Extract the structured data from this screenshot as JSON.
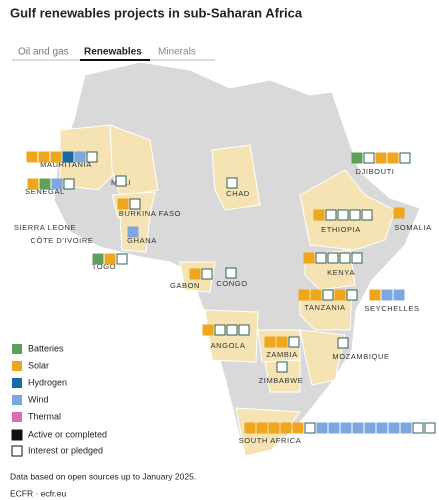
{
  "header": {
    "title": "Gulf renewables projects in sub-Saharan Africa"
  },
  "tabs": [
    "Oil and gas",
    "Renewables",
    "Minerals"
  ],
  "legend": {
    "types": [
      {
        "label": "Batteries",
        "color": "#5f9f5c"
      },
      {
        "label": "Solar",
        "color": "#efa51c"
      },
      {
        "label": "Hydrogen",
        "color": "#1b68a6"
      },
      {
        "label": "Wind",
        "color": "#7ea7e0"
      },
      {
        "label": "Thermal",
        "color": "#d86db6"
      }
    ],
    "statuses": [
      "Active or completed",
      "Interest or pledged"
    ]
  },
  "countries": [
    {
      "name": "MAURITANIA",
      "projects": [
        {
          "type": "Solar",
          "status": "Active or completed"
        },
        {
          "type": "Solar",
          "status": "Active or completed"
        },
        {
          "type": "Solar",
          "status": "Active or completed"
        },
        {
          "type": "Hydrogen",
          "status": "Active or completed"
        },
        {
          "type": "Wind",
          "status": "Active or completed"
        },
        {
          "type": "Hydrogen",
          "status": "Interest or pledged"
        }
      ]
    },
    {
      "name": "SENEGAL",
      "projects": [
        {
          "type": "Solar",
          "status": "Active or completed"
        },
        {
          "type": "Batteries",
          "status": "Active or completed"
        },
        {
          "type": "Wind",
          "status": "Active or completed"
        },
        {
          "type": "Solar",
          "status": "Interest or pledged"
        }
      ]
    },
    {
      "name": "MALI",
      "projects": [
        {
          "type": "Solar",
          "status": "Interest or pledged"
        }
      ]
    },
    {
      "name": "CHAD",
      "projects": [
        {
          "type": "Solar",
          "status": "Interest or pledged"
        }
      ]
    },
    {
      "name": "BURKINA FASO",
      "projects": [
        {
          "type": "Solar",
          "status": "Active or completed"
        },
        {
          "type": "Solar",
          "status": "Interest or pledged"
        }
      ]
    },
    {
      "name": "SIERRA LEONE",
      "projects": []
    },
    {
      "name": "CÔTE D'IVOIRE",
      "projects": []
    },
    {
      "name": "GHANA",
      "projects": [
        {
          "type": "Wind",
          "status": "Active or completed"
        }
      ]
    },
    {
      "name": "TOGO",
      "projects": [
        {
          "type": "Batteries",
          "status": "Active or completed"
        },
        {
          "type": "Solar",
          "status": "Active or completed"
        },
        {
          "type": "Solar",
          "status": "Interest or pledged"
        }
      ]
    },
    {
      "name": "GABON",
      "projects": [
        {
          "type": "Solar",
          "status": "Active or completed"
        },
        {
          "type": "Solar",
          "status": "Interest or pledged"
        }
      ]
    },
    {
      "name": "CONGO",
      "projects": [
        {
          "type": "Solar",
          "status": "Interest or pledged"
        }
      ]
    },
    {
      "name": "DJIBOUTI",
      "projects": [
        {
          "type": "Batteries",
          "status": "Active or completed"
        },
        {
          "type": "Batteries",
          "status": "Interest or pledged"
        },
        {
          "type": "Solar",
          "status": "Active or completed"
        },
        {
          "type": "Solar",
          "status": "Active or completed"
        },
        {
          "type": "Hydrogen",
          "status": "Interest or pledged"
        }
      ]
    },
    {
      "name": "ETHIOPIA",
      "projects": [
        {
          "type": "Solar",
          "status": "Active or completed"
        },
        {
          "type": "Solar",
          "status": "Interest or pledged"
        },
        {
          "type": "Hydrogen",
          "status": "Interest or pledged"
        },
        {
          "type": "Batteries",
          "status": "Interest or pledged"
        },
        {
          "type": "Wind",
          "status": "Interest or pledged"
        }
      ]
    },
    {
      "name": "SOMALIA",
      "projects": [
        {
          "type": "Solar",
          "status": "Active or completed"
        }
      ]
    },
    {
      "name": "KENYA",
      "projects": [
        {
          "type": "Solar",
          "status": "Active or completed"
        },
        {
          "type": "Solar",
          "status": "Interest or pledged"
        },
        {
          "type": "Wind",
          "status": "Interest or pledged"
        },
        {
          "type": "Thermal",
          "status": "Interest or pledged"
        },
        {
          "type": "Thermal",
          "status": "Interest or pledged"
        }
      ]
    },
    {
      "name": "TANZANIA",
      "projects": [
        {
          "type": "Solar",
          "status": "Active or completed"
        },
        {
          "type": "Solar",
          "status": "Active or completed"
        },
        {
          "type": "Solar",
          "status": "Interest or pledged"
        },
        {
          "type": "Solar",
          "status": "Active or completed"
        },
        {
          "type": "Solar",
          "status": "Interest or pledged"
        }
      ]
    },
    {
      "name": "SEYCHELLES",
      "projects": [
        {
          "type": "Solar",
          "status": "Active or completed"
        },
        {
          "type": "Wind",
          "status": "Active or completed"
        },
        {
          "type": "Wind",
          "status": "Active or completed"
        }
      ]
    },
    {
      "name": "ANGOLA",
      "projects": [
        {
          "type": "Solar",
          "status": "Active or completed"
        },
        {
          "type": "Solar",
          "status": "Interest or pledged"
        },
        {
          "type": "Solar",
          "status": "Interest or pledged"
        },
        {
          "type": "Hydrogen",
          "status": "Interest or pledged"
        }
      ]
    },
    {
      "name": "ZAMBIA",
      "projects": [
        {
          "type": "Solar",
          "status": "Active or completed"
        },
        {
          "type": "Solar",
          "status": "Active or completed"
        },
        {
          "type": "Solar",
          "status": "Interest or pledged"
        }
      ]
    },
    {
      "name": "MOZAMBIQUE",
      "projects": [
        {
          "type": "Solar",
          "status": "Interest or pledged"
        }
      ]
    },
    {
      "name": "ZIMBABWE",
      "projects": [
        {
          "type": "Solar",
          "status": "Interest or pledged"
        }
      ]
    },
    {
      "name": "SOUTH AFRICA",
      "projects": [
        {
          "type": "Solar",
          "status": "Active or completed"
        },
        {
          "type": "Solar",
          "status": "Active or completed"
        },
        {
          "type": "Solar",
          "status": "Active or completed"
        },
        {
          "type": "Solar",
          "status": "Active or completed"
        },
        {
          "type": "Solar",
          "status": "Active or completed"
        },
        {
          "type": "Solar",
          "status": "Interest or pledged"
        },
        {
          "type": "Wind",
          "status": "Active or completed"
        },
        {
          "type": "Wind",
          "status": "Active or completed"
        },
        {
          "type": "Wind",
          "status": "Active or completed"
        },
        {
          "type": "Wind",
          "status": "Active or completed"
        },
        {
          "type": "Wind",
          "status": "Active or completed"
        },
        {
          "type": "Wind",
          "status": "Active or completed"
        },
        {
          "type": "Wind",
          "status": "Active or completed"
        },
        {
          "type": "Wind",
          "status": "Active or completed"
        },
        {
          "type": "Hydrogen",
          "status": "Interest or pledged"
        },
        {
          "type": "Hydrogen",
          "status": "Interest or pledged"
        }
      ]
    }
  ],
  "notes": {
    "source": "Data based on open sources up to January 2025.",
    "credit": "ECFR · ecfr.eu"
  }
}
